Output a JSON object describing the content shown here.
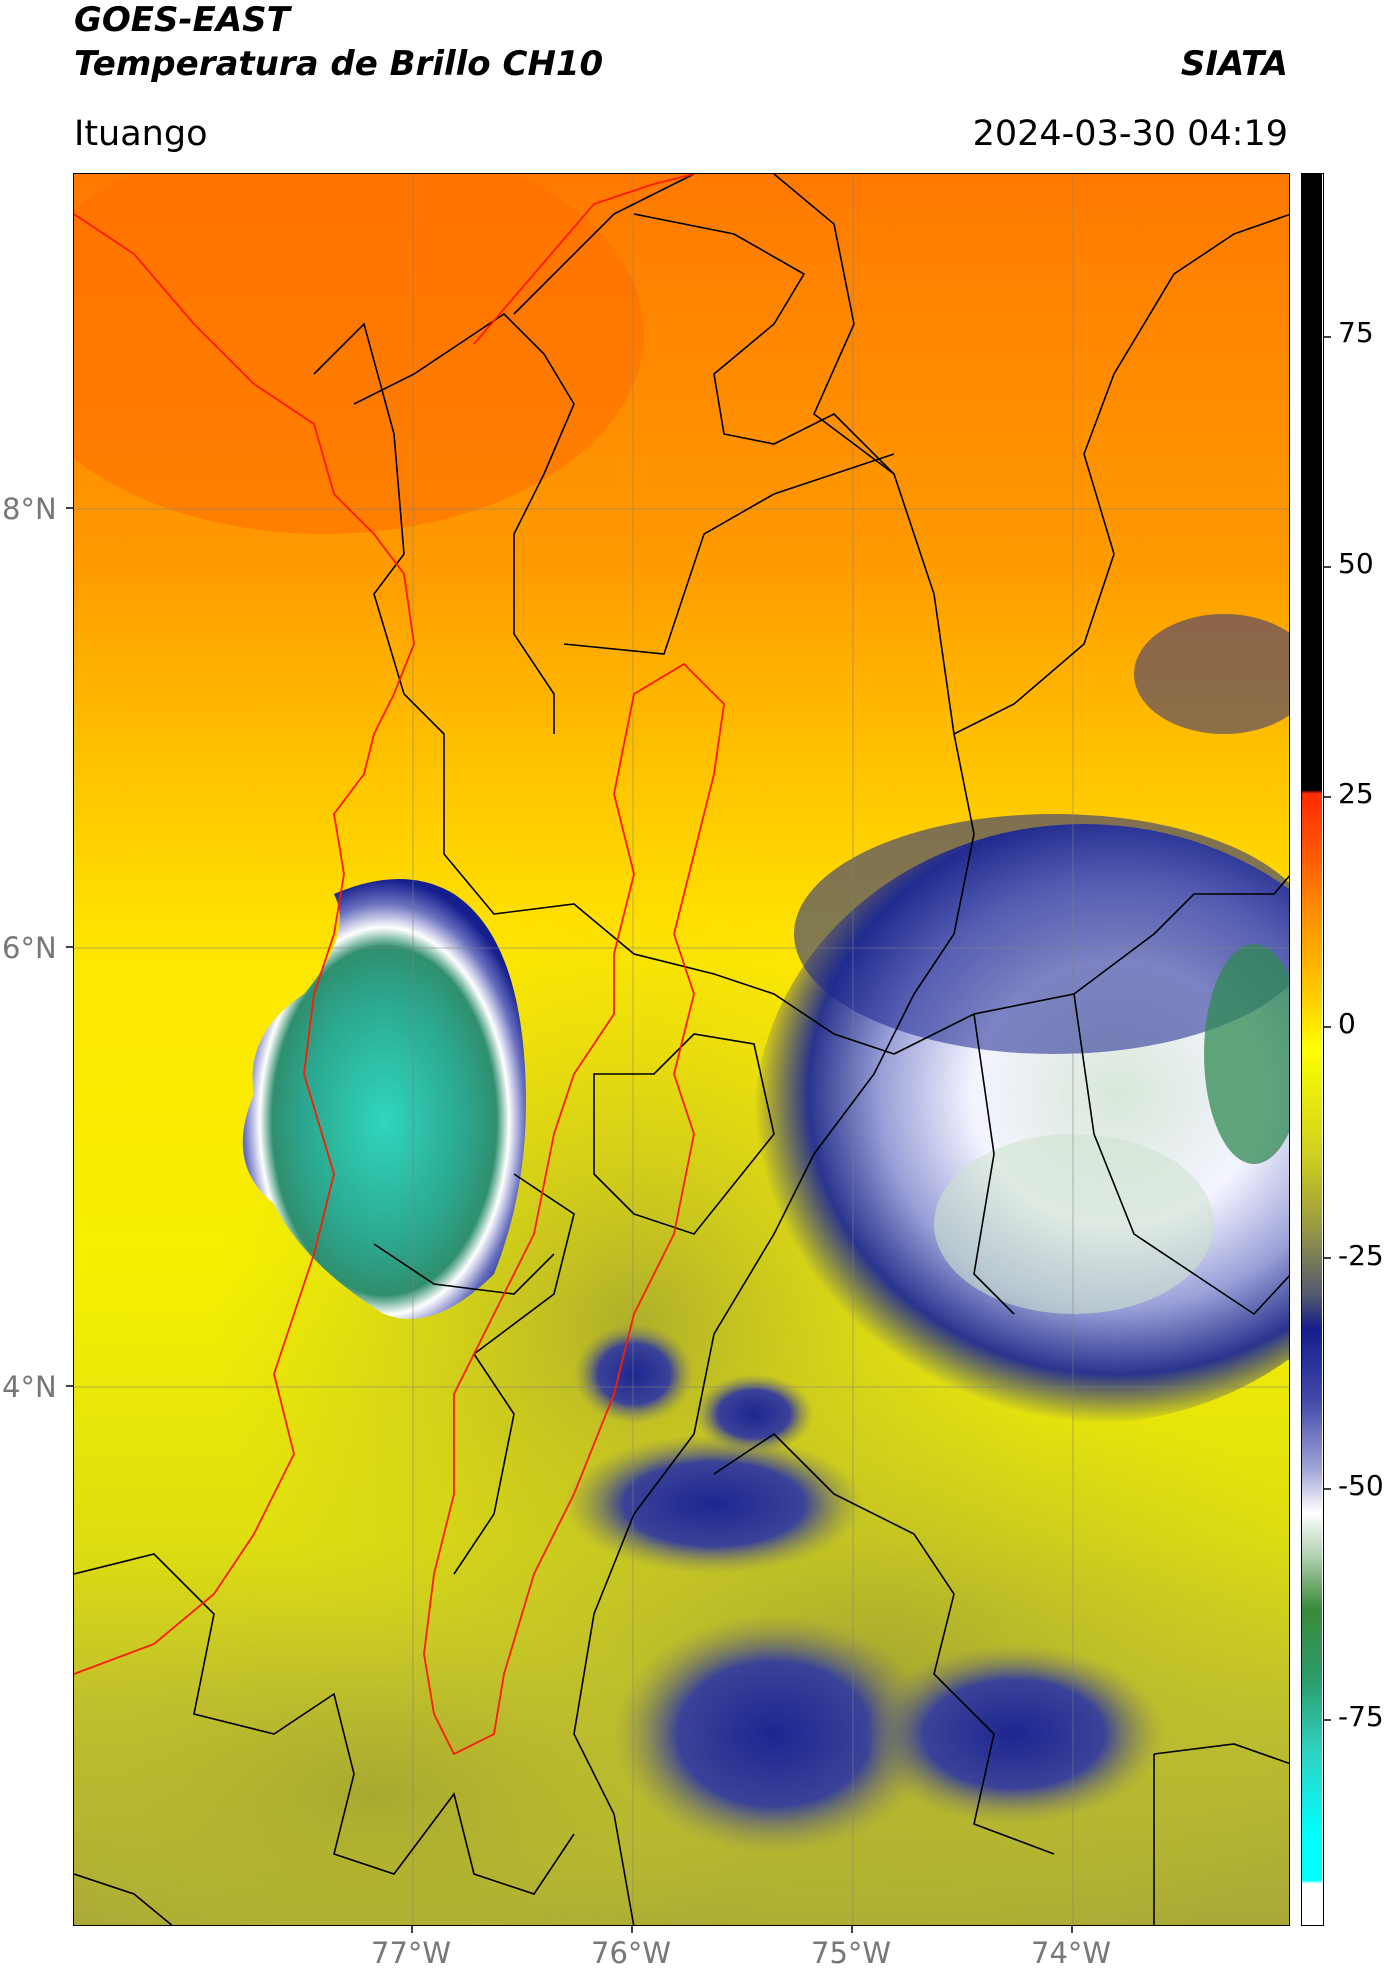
{
  "header": {
    "title_line1": "GOES-EAST",
    "title_line2": "Temperatura de Brillo CH10",
    "org": "SIATA",
    "region": "Ituango",
    "timestamp": "2024-03-30 04:19"
  },
  "map": {
    "lat_ticks": [
      "8°N",
      "6°N",
      "4°N"
    ],
    "lon_ticks": [
      "77°W",
      "76°W",
      "75°W",
      "74°W"
    ]
  },
  "colorbar": {
    "ticks": [
      "75",
      "50",
      "25",
      "0",
      "-25",
      "-50",
      "-75"
    ],
    "colors": {
      "black": "#000000",
      "red": "#ff2a00",
      "orange": "#ff8c00",
      "yellow": "#ffff00",
      "olive": "#b8b832",
      "navy": "#141e8c",
      "white": "#ffffff",
      "green": "#3a8a3a",
      "teal": "#30d0c0",
      "cyan": "#00ffff"
    }
  }
}
